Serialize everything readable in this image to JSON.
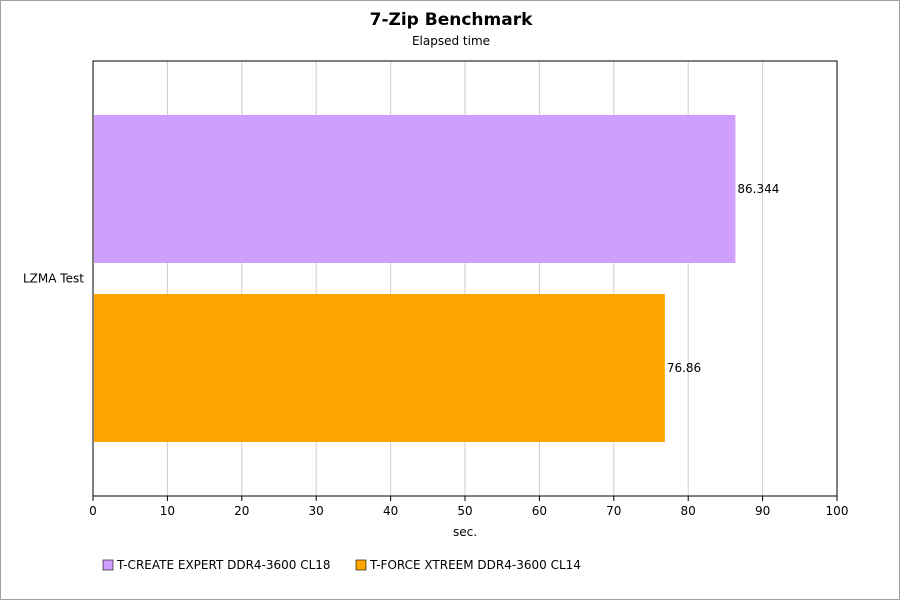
{
  "chart_data": {
    "type": "bar",
    "orientation": "horizontal",
    "title": "7-Zip Benchmark",
    "subtitle": "Elapsed time",
    "categories": [
      "LZMA Test"
    ],
    "series": [
      {
        "name": "T-CREATE EXPERT DDR4-3600 CL18",
        "color": "#cf9fff",
        "values": [
          86.344
        ],
        "labels": [
          "86.344"
        ]
      },
      {
        "name": "T-FORCE XTREEM DDR4-3600 CL14",
        "color": "#ffa500",
        "values": [
          76.86
        ],
        "labels": [
          "76.86"
        ]
      }
    ],
    "xlabel": "sec.",
    "ylabel": "",
    "xlim": [
      0,
      100
    ],
    "xticks": [
      0,
      10,
      20,
      30,
      40,
      50,
      60,
      70,
      80,
      90,
      100
    ],
    "grid": true,
    "legend_position": "bottom-left"
  }
}
